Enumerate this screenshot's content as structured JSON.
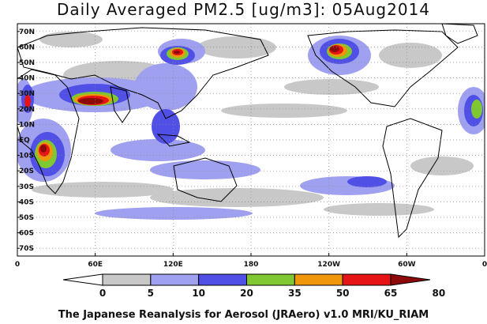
{
  "title": "Daily Averaged PM2.5 [ug/m3]: 05Aug2014",
  "footer": "The Japanese Reanalysis for Aerosol (JRAero) v1.0 MRI/KU_RIAM",
  "lat_labels": [
    "70N",
    "60N",
    "50N",
    "40N",
    "30N",
    "20N",
    "10N",
    "EQ",
    "10S",
    "20S",
    "30S",
    "40S",
    "50S",
    "60S",
    "70S"
  ],
  "lon_labels": [
    "0",
    "60E",
    "120E",
    "180",
    "120W",
    "60W",
    "0"
  ],
  "colorbar": {
    "ticks": [
      "0",
      "5",
      "10",
      "20",
      "35",
      "50",
      "65",
      "80"
    ],
    "colors": [
      "#ffffff",
      "#c8c8c8",
      "#a0a0f0",
      "#5050e6",
      "#7fc832",
      "#f0960a",
      "#e61414",
      "#8c0a0a"
    ]
  },
  "plumes": [
    {
      "level": 2,
      "color": "#a0a0f0"
    },
    {
      "level": 3,
      "color": "#5050e6"
    },
    {
      "level": 5,
      "color": "#f0960a"
    },
    {
      "level": 6,
      "color": "#e61414"
    },
    {
      "level": 7,
      "color": "#8c0a0a"
    }
  ]
}
